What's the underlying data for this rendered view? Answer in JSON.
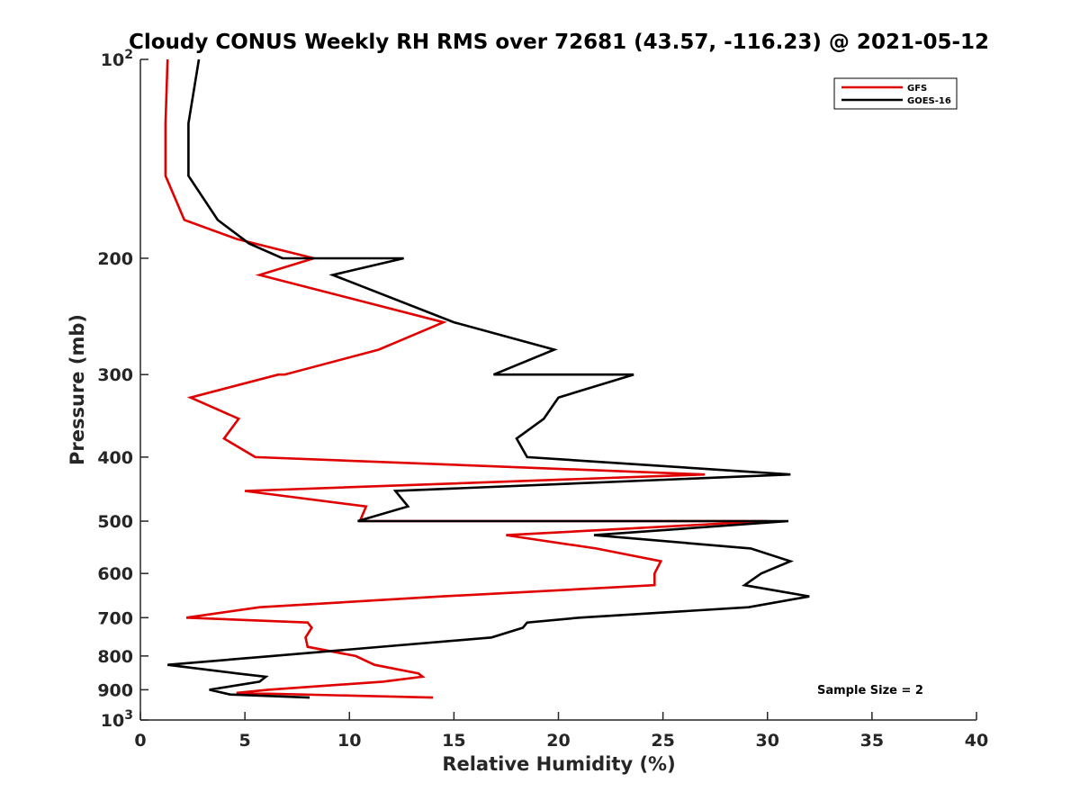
{
  "chart_data": {
    "type": "line",
    "title": "Cloudy CONUS Weekly RH RMS over 72681 (43.57, -116.23) @ 2021-05-12",
    "xlabel": "Relative Humidity (%)",
    "ylabel": "Pressure (mb)",
    "xlim": [
      0,
      40
    ],
    "ylim": [
      100,
      1000
    ],
    "y_scale": "log",
    "y_reversed": true,
    "grid": false,
    "legend_position": "top-right",
    "x_ticks": [
      0,
      5,
      10,
      15,
      20,
      25,
      30,
      35,
      40
    ],
    "x_tick_labels": [
      "0",
      "5",
      "10",
      "15",
      "20",
      "25",
      "30",
      "35",
      "40"
    ],
    "y_ticks": [
      {
        "value": 100,
        "base": "10",
        "exp": "2"
      },
      {
        "value": 200,
        "text": "200"
      },
      {
        "value": 300,
        "text": "300"
      },
      {
        "value": 400,
        "text": "400"
      },
      {
        "value": 500,
        "text": "500"
      },
      {
        "value": 600,
        "text": "600"
      },
      {
        "value": 700,
        "text": "700"
      },
      {
        "value": 800,
        "text": "800"
      },
      {
        "value": 900,
        "text": "900"
      },
      {
        "value": 1000,
        "base": "10",
        "exp": "3"
      }
    ],
    "annotation": "Sample Size = 2",
    "series": [
      {
        "name": "GFS",
        "color": "#e00000",
        "points": [
          [
            1.3,
            100
          ],
          [
            1.2,
            125
          ],
          [
            1.2,
            150
          ],
          [
            2.1,
            175
          ],
          [
            4.6,
            187
          ],
          [
            8.3,
            200
          ],
          [
            5.7,
            212
          ],
          [
            14.5,
            250
          ],
          [
            11.4,
            275
          ],
          [
            6.9,
            300
          ],
          [
            6.6,
            300
          ],
          [
            2.4,
            325
          ],
          [
            4.7,
            350
          ],
          [
            4.0,
            375
          ],
          [
            5.5,
            400
          ],
          [
            27.0,
            425
          ],
          [
            5.0,
            450
          ],
          [
            10.8,
            475
          ],
          [
            10.5,
            500
          ],
          [
            30.0,
            500
          ],
          [
            17.5,
            525
          ],
          [
            21.8,
            550
          ],
          [
            24.9,
            575
          ],
          [
            24.6,
            600
          ],
          [
            24.6,
            625
          ],
          [
            14.4,
            650
          ],
          [
            5.7,
            675
          ],
          [
            2.2,
            700
          ],
          [
            8.0,
            712
          ],
          [
            8.2,
            725
          ],
          [
            7.9,
            750
          ],
          [
            8.0,
            775
          ],
          [
            10.3,
            800
          ],
          [
            11.2,
            825
          ],
          [
            13.3,
            850
          ],
          [
            13.5,
            860
          ],
          [
            11.6,
            875
          ],
          [
            6.1,
            900
          ],
          [
            4.6,
            910
          ],
          [
            14.0,
            925
          ]
        ]
      },
      {
        "name": "GOES-16",
        "color": "#000000",
        "points": [
          [
            2.8,
            100
          ],
          [
            2.3,
            125
          ],
          [
            2.3,
            150
          ],
          [
            3.7,
            175
          ],
          [
            5.2,
            190
          ],
          [
            6.8,
            200
          ],
          [
            12.6,
            200
          ],
          [
            9.2,
            212
          ],
          [
            15.0,
            250
          ],
          [
            19.8,
            275
          ],
          [
            16.9,
            300
          ],
          [
            23.6,
            300
          ],
          [
            20.0,
            325
          ],
          [
            19.3,
            350
          ],
          [
            18.0,
            375
          ],
          [
            18.5,
            400
          ],
          [
            31.1,
            425
          ],
          [
            12.2,
            450
          ],
          [
            12.8,
            475
          ],
          [
            10.4,
            500
          ],
          [
            31.0,
            500
          ],
          [
            21.7,
            525
          ],
          [
            29.2,
            550
          ],
          [
            31.1,
            575
          ],
          [
            29.7,
            600
          ],
          [
            28.9,
            625
          ],
          [
            32.0,
            650
          ],
          [
            29.1,
            675
          ],
          [
            21.0,
            700
          ],
          [
            18.5,
            712
          ],
          [
            18.3,
            725
          ],
          [
            16.8,
            750
          ],
          [
            6.3,
            800
          ],
          [
            1.3,
            825
          ],
          [
            4.6,
            850
          ],
          [
            6.0,
            860
          ],
          [
            5.7,
            875
          ],
          [
            3.3,
            900
          ],
          [
            4.3,
            915
          ],
          [
            8.1,
            925
          ]
        ]
      }
    ]
  }
}
